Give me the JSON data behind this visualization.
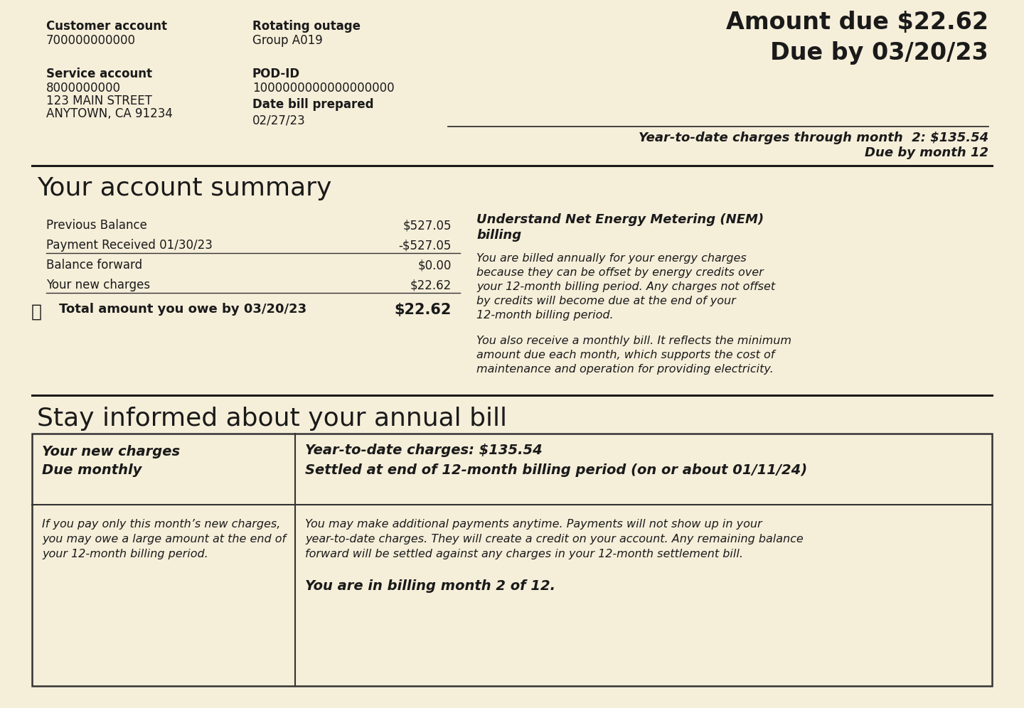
{
  "bg_color": "#f5eed9",
  "text_color": "#1a1a1a",
  "header": {
    "customer_account_label": "Customer account",
    "customer_account_value": "700000000000",
    "rotating_outage_label": "Rotating outage",
    "rotating_outage_value": "Group A019",
    "amount_due_line1": "Amount due $22.62",
    "amount_due_line2": "Due by 03/20/23",
    "service_account_label": "Service account",
    "service_account_value1": "8000000000",
    "service_account_value2": "123 MAIN STREET",
    "service_account_value3": "ANYTOWN, CA 91234",
    "pod_id_label": "POD-ID",
    "pod_id_value": "1000000000000000000",
    "date_bill_prepared_label": "Date bill prepared",
    "date_bill_prepared_value": "02/27/23",
    "ytd_line1": "Year-to-date charges through month  2: $135.54",
    "ytd_line2": "Due by month 12"
  },
  "account_summary": {
    "title": "Your account summary",
    "rows": [
      {
        "label": "Previous Balance",
        "value": "$527.05",
        "underline": false
      },
      {
        "label": "Payment Received 01/30/23",
        "value": "-$527.05",
        "underline": true
      },
      {
        "label": "Balance forward",
        "value": "$0.00",
        "underline": false
      },
      {
        "label": "Your new charges",
        "value": "$22.62",
        "underline": true
      }
    ],
    "total_label": "Total amount you owe by 03/20/23",
    "total_value": "$22.62",
    "nem_title_line1": "Understand Net Energy Metering (NEM)",
    "nem_title_line2": "billing",
    "nem_para1": "You are billed annually for your energy charges\nbecause they can be offset by energy credits over\nyour 12-month billing period. Any charges not offset\nby credits will become due at the end of your\n12-month billing period.",
    "nem_para2": "You also receive a monthly bill. It reflects the minimum\namount due each month, which supports the cost of\nmaintenance and operation for providing electricity."
  },
  "annual_bill": {
    "title": "Stay informed about your annual bill",
    "col1_header_line1": "Your new charges",
    "col1_header_line2": "Due monthly",
    "col2_header_line1": "Year-to-date charges: $135.54",
    "col2_header_line2": "Settled at end of 12-month billing period (on or about 01/11/24)",
    "col1_body": "If you pay only this month’s new charges,\nyou may owe a large amount at the end of\nyour 12-month billing period.",
    "col2_body": "You may make additional payments anytime. Payments will not show up in your\nyear-to-date charges. They will create a credit on your account. Any remaining balance\nforward will be settled against any charges in your 12-month settlement bill.",
    "col2_footer": "You are in billing month 2 of 12."
  }
}
